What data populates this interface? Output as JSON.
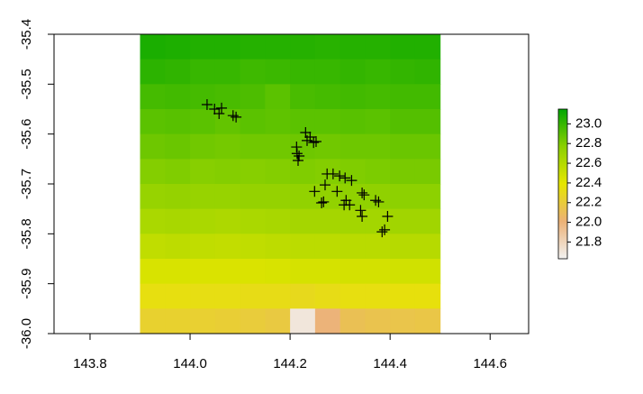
{
  "chart_data": {
    "type": "raster",
    "xlim": [
      143.728,
      144.677
    ],
    "ylim": [
      -36.0,
      -35.4
    ],
    "xticks": [
      143.8,
      {
        "value": 144,
        "label": "144.0"
      },
      144.2,
      144.4,
      144.6
    ],
    "yticks": [
      -35.4,
      -35.5,
      -35.6,
      -35.7,
      -35.8,
      -35.9,
      {
        "value": -36,
        "label": "-36.0"
      }
    ],
    "raster": {
      "x_extent": [
        143.9,
        144.5
      ],
      "y_extent": [
        -36.0,
        -35.4
      ],
      "values": [
        [
          23.08,
          23.07,
          23.06,
          23.06,
          23.05,
          23.05,
          23.05,
          23.04,
          23.05,
          23.05,
          23.06,
          23.06
        ],
        [
          23.03,
          23.02,
          23.0,
          23.0,
          22.98,
          22.99,
          23.0,
          23.0,
          23.01,
          23.0,
          23.01,
          23.02
        ],
        [
          22.96,
          22.97,
          22.96,
          22.95,
          22.94,
          22.9,
          22.95,
          22.96,
          22.97,
          22.96,
          22.97,
          22.97
        ],
        [
          22.9,
          22.91,
          22.9,
          22.88,
          22.9,
          22.89,
          22.9,
          22.9,
          22.91,
          22.9,
          22.92,
          22.92
        ],
        [
          22.85,
          22.86,
          22.84,
          22.83,
          22.84,
          22.84,
          22.85,
          22.84,
          22.85,
          22.85,
          22.86,
          22.86
        ],
        [
          22.79,
          22.8,
          22.78,
          22.79,
          22.78,
          22.79,
          22.8,
          22.79,
          22.8,
          22.81,
          22.82,
          22.82
        ],
        [
          22.72,
          22.73,
          22.72,
          22.72,
          22.73,
          22.73,
          22.74,
          22.74,
          22.75,
          22.75,
          22.76,
          22.76
        ],
        [
          22.64,
          22.65,
          22.64,
          22.63,
          22.64,
          22.65,
          22.66,
          22.66,
          22.67,
          22.67,
          22.68,
          22.68
        ],
        [
          22.55,
          22.56,
          22.55,
          22.54,
          22.55,
          22.56,
          22.57,
          22.57,
          22.58,
          22.58,
          22.59,
          22.59
        ],
        [
          22.45,
          22.45,
          22.44,
          22.44,
          22.44,
          22.45,
          22.46,
          22.46,
          22.47,
          22.47,
          22.48,
          22.48
        ],
        [
          22.34,
          22.34,
          22.33,
          22.33,
          22.32,
          22.32,
          22.3,
          22.32,
          22.34,
          22.34,
          22.35,
          22.35
        ],
        [
          22.24,
          22.24,
          22.23,
          22.22,
          22.2,
          22.18,
          21.7,
          22.0,
          22.12,
          22.14,
          22.15,
          22.16
        ]
      ]
    },
    "points": {
      "marker": "+",
      "color": "#000000",
      "x": [
        144.034,
        144.049,
        144.058,
        144.063,
        144.086,
        144.092,
        144.231,
        144.234,
        144.24,
        144.247,
        144.252,
        144.213,
        144.214,
        144.216,
        144.218,
        144.274,
        144.286,
        144.299,
        144.31,
        144.323,
        144.27,
        144.294,
        144.249,
        144.267,
        144.263,
        144.312,
        144.308,
        144.319,
        144.344,
        144.348,
        144.344,
        144.341,
        144.371,
        144.377,
        144.395,
        144.384,
        144.389
      ],
      "y": [
        -35.541,
        -35.55,
        -35.559,
        -35.548,
        -35.563,
        -35.566,
        -35.597,
        -35.613,
        -35.606,
        -35.617,
        -35.615,
        -35.626,
        -35.639,
        -35.653,
        -35.644,
        -35.68,
        -35.68,
        -35.684,
        -35.688,
        -35.693,
        -35.702,
        -35.715,
        -35.715,
        -35.736,
        -35.738,
        -35.733,
        -35.742,
        -35.742,
        -35.718,
        -35.722,
        -35.765,
        -35.753,
        -35.733,
        -35.736,
        -35.765,
        -35.796,
        -35.792
      ]
    },
    "legend": {
      "lim": [
        21.63,
        23.15
      ],
      "colors": [
        "#f2f2f2",
        "#ecb176",
        "#e6e600",
        "#8bd000",
        "#00a600"
      ],
      "ticks": [
        21.8,
        {
          "value": 22,
          "label": "22.0"
        },
        22.2,
        22.4,
        22.6,
        22.8,
        {
          "value": 23,
          "label": "23.0"
        }
      ]
    }
  }
}
